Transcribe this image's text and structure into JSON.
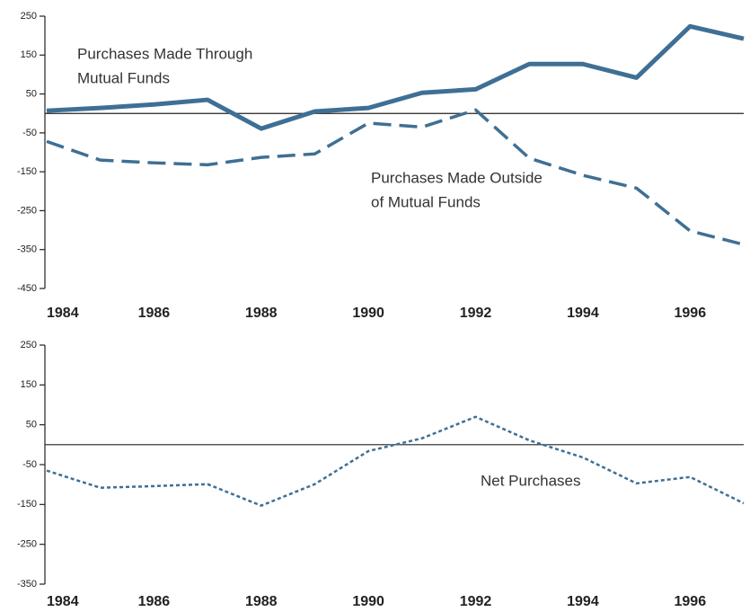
{
  "chart_data": [
    {
      "type": "line",
      "x": [
        1984,
        1985,
        1986,
        1987,
        1988,
        1989,
        1990,
        1991,
        1992,
        1993,
        1994,
        1995,
        1996,
        1997
      ],
      "xlim": [
        1984,
        1997
      ],
      "xticks": [
        1984,
        1986,
        1988,
        1990,
        1992,
        1994,
        1996
      ],
      "ylim": [
        -450,
        250
      ],
      "yticks": [
        250,
        150,
        50,
        -50,
        -150,
        -250,
        -350,
        -450
      ],
      "hline": 0,
      "series": [
        {
          "color": "#3f6f94",
          "style": "solid",
          "values": [
            7,
            14,
            23,
            35,
            -39,
            5,
            14,
            53,
            62,
            127,
            127,
            92,
            224,
            192
          ]
        },
        {
          "color": "#3f6f94",
          "style": "dashed",
          "values": [
            -72,
            -120,
            -127,
            -132,
            -113,
            -104,
            -25,
            -35,
            9,
            -115,
            -159,
            -192,
            -302,
            -337
          ]
        }
      ],
      "annotations": [
        {
          "lines": [
            "Purchases Made Through",
            "Mutual Funds"
          ]
        },
        {
          "lines": [
            "Purchases Made Outside",
            "of Mutual Funds"
          ]
        }
      ]
    },
    {
      "type": "line",
      "x": [
        1984,
        1985,
        1986,
        1987,
        1988,
        1989,
        1990,
        1991,
        1992,
        1993,
        1994,
        1995,
        1996,
        1997
      ],
      "xlim": [
        1984,
        1997
      ],
      "xticks": [
        1984,
        1986,
        1988,
        1990,
        1992,
        1994,
        1996
      ],
      "ylim": [
        -350,
        250
      ],
      "yticks": [
        250,
        150,
        50,
        -50,
        -150,
        -250,
        -350
      ],
      "hline": 0,
      "series": [
        {
          "color": "#3f6f94",
          "style": "dotted",
          "values": [
            -65,
            -108,
            -104,
            -99,
            -153,
            -99,
            -16,
            16,
            70,
            11,
            -32,
            -97,
            -81,
            -147
          ]
        }
      ],
      "annotations": [
        {
          "lines": [
            "Net Purchases"
          ]
        }
      ]
    }
  ]
}
